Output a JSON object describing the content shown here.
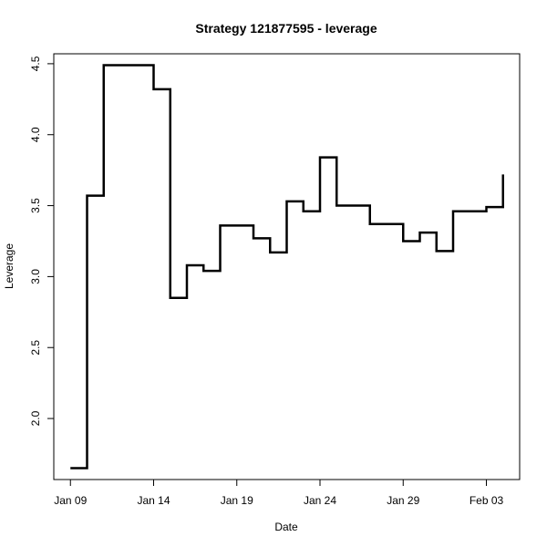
{
  "chart_data": {
    "type": "line",
    "step": true,
    "title": "Strategy 121877595 - leverage",
    "xlabel": "Date",
    "ylabel": "Leverage",
    "x": [
      "2020-01-09",
      "2020-01-10",
      "2020-01-11",
      "2020-01-12",
      "2020-01-13",
      "2020-01-14",
      "2020-01-15",
      "2020-01-16",
      "2020-01-17",
      "2020-01-18",
      "2020-01-19",
      "2020-01-20",
      "2020-01-21",
      "2020-01-22",
      "2020-01-23",
      "2020-01-24",
      "2020-01-25",
      "2020-01-26",
      "2020-01-27",
      "2020-01-28",
      "2020-01-29",
      "2020-01-30",
      "2020-01-31",
      "2020-02-01",
      "2020-02-02",
      "2020-02-03",
      "2020-02-04"
    ],
    "series": [
      {
        "values": [
          1.65,
          3.57,
          4.49,
          4.49,
          4.49,
          4.32,
          2.85,
          3.08,
          3.04,
          3.36,
          3.36,
          3.27,
          3.17,
          3.53,
          3.46,
          3.84,
          3.5,
          3.5,
          3.37,
          3.37,
          3.25,
          3.31,
          3.18,
          3.46,
          3.46,
          3.49,
          3.72
        ]
      }
    ],
    "x_ticks": [
      {
        "date": "2020-01-09",
        "label": "Jan 09"
      },
      {
        "date": "2020-01-14",
        "label": "Jan 14"
      },
      {
        "date": "2020-01-19",
        "label": "Jan 19"
      },
      {
        "date": "2020-01-24",
        "label": "Jan 24"
      },
      {
        "date": "2020-01-29",
        "label": "Jan 29"
      },
      {
        "date": "2020-02-03",
        "label": "Feb 03"
      }
    ],
    "y_ticks": [
      {
        "value": 2.0,
        "label": "2.0"
      },
      {
        "value": 2.5,
        "label": "2.5"
      },
      {
        "value": 3.0,
        "label": "3.0"
      },
      {
        "value": 3.5,
        "label": "3.5"
      },
      {
        "value": 4.0,
        "label": "4.0"
      },
      {
        "value": 4.5,
        "label": "4.5"
      }
    ],
    "xlim": [
      "2020-01-08",
      "2020-02-05"
    ],
    "ylim": [
      1.57,
      4.57
    ],
    "grid": false,
    "legend": "none",
    "line_color": "#000000"
  }
}
